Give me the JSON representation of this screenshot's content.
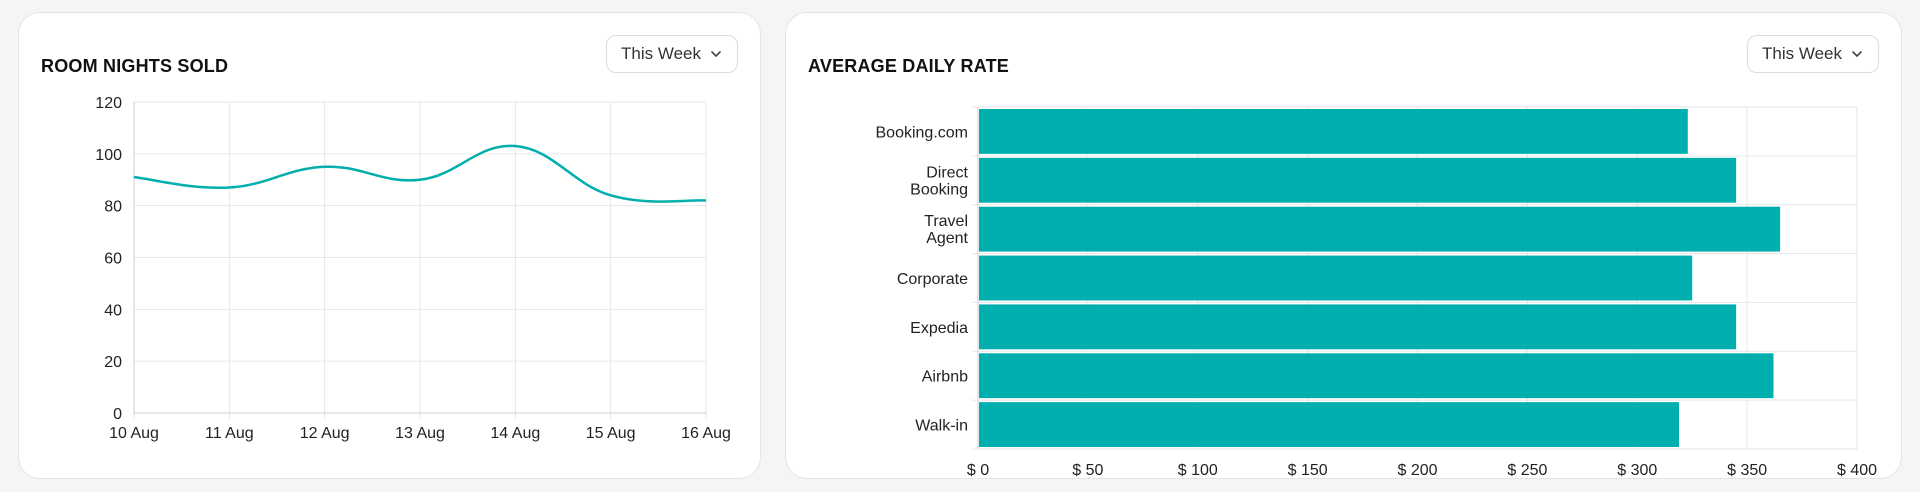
{
  "cards": {
    "left": {
      "title": "ROOM NIGHTS SOLD",
      "period": "This Week"
    },
    "right": {
      "title": "AVERAGE DAILY RATE",
      "period": "This Week"
    }
  },
  "colors": {
    "accent": "#00aead",
    "grid": "#e6e6e9"
  },
  "chart_data": [
    {
      "type": "line",
      "title": "ROOM NIGHTS SOLD",
      "x": [
        "10 Aug",
        "11 Aug",
        "12 Aug",
        "13 Aug",
        "14 Aug",
        "15 Aug",
        "16 Aug"
      ],
      "series": [
        {
          "values": [
            91,
            87,
            95,
            90,
            103,
            84,
            82
          ]
        }
      ],
      "ylim": [
        0,
        120
      ],
      "yticks": [
        0,
        20,
        40,
        60,
        80,
        100,
        120
      ],
      "grid": true
    },
    {
      "type": "bar",
      "orientation": "horizontal",
      "title": "AVERAGE DAILY RATE",
      "categories": [
        "Booking.com",
        "Direct Booking",
        "Travel Agent",
        "Corporate",
        "Expedia",
        "Airbnb",
        "Walk-in"
      ],
      "values": [
        323,
        345,
        365,
        325,
        345,
        362,
        319
      ],
      "xlim": [
        0,
        400
      ],
      "xticks": [
        "$ 0",
        "$ 50",
        "$ 100",
        "$ 150",
        "$ 200",
        "$ 250",
        "$ 300",
        "$ 350",
        "$ 400"
      ],
      "grid": true
    }
  ]
}
